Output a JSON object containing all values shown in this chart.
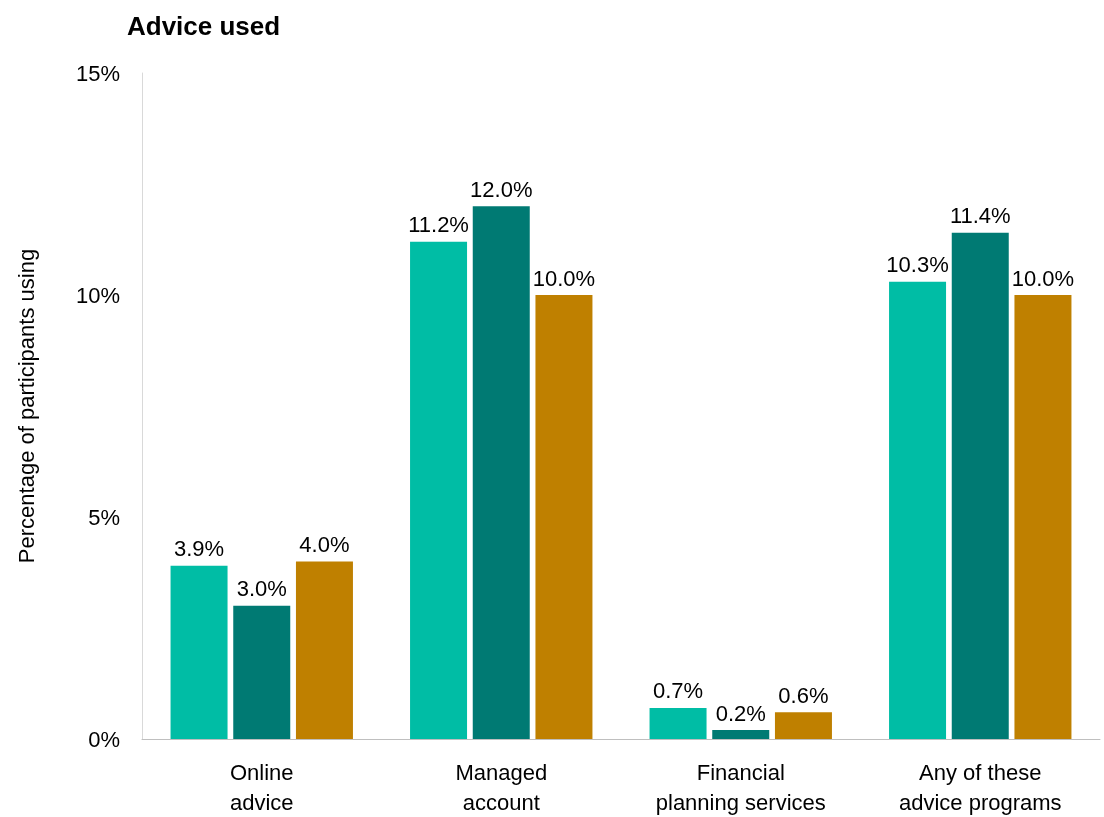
{
  "chart_data": {
    "type": "bar",
    "title": "Advice used",
    "ylabel": "Percentage of participants using",
    "categories": [
      "Online\nadvice",
      "Managed\naccount",
      "Financial\nplanning services",
      "Any of these\nadvice programs"
    ],
    "series": [
      {
        "color": "#00bda5",
        "values": [
          3.9,
          11.2,
          0.7,
          10.3
        ],
        "value_labels": [
          "3.9%",
          "11.2%",
          "0.7%",
          "10.3%"
        ]
      },
      {
        "color": "#007a73",
        "values": [
          3.0,
          12.0,
          0.2,
          11.4
        ],
        "value_labels": [
          "3.0%",
          "12.0%",
          "0.2%",
          "11.4%"
        ]
      },
      {
        "color": "#bf8000",
        "values": [
          4.0,
          10.0,
          0.6,
          10.0
        ],
        "value_labels": [
          "4.0%",
          "10.0%",
          "0.6%",
          "10.0%"
        ]
      }
    ],
    "ylim": [
      0,
      15
    ],
    "yticks": [
      {
        "value": 0,
        "label": "0%"
      },
      {
        "value": 5,
        "label": "5%"
      },
      {
        "value": 10,
        "label": "10%"
      },
      {
        "value": 15,
        "label": "15%"
      }
    ],
    "stacked": false
  }
}
